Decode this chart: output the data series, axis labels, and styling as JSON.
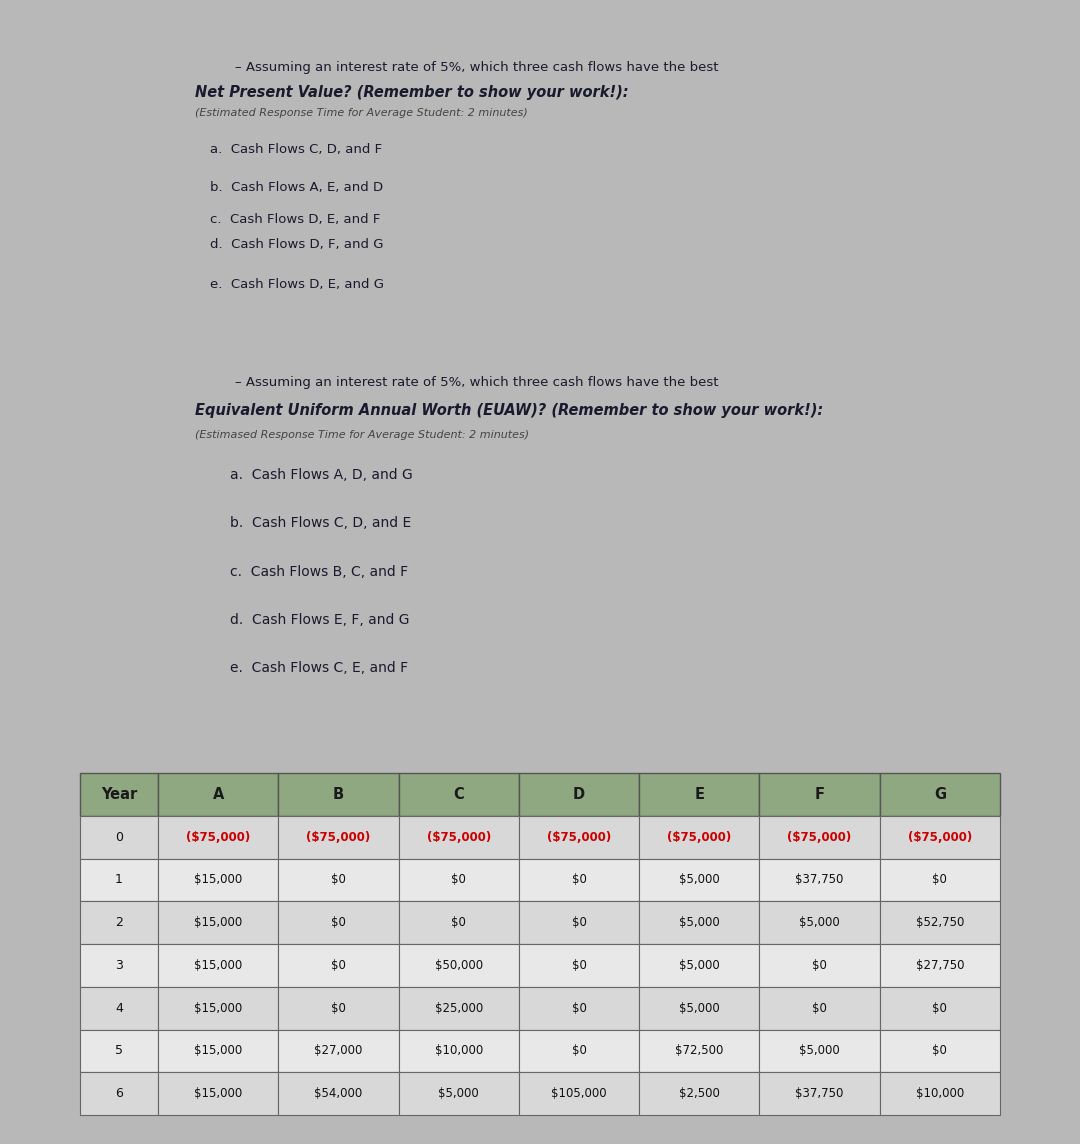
{
  "bg_color": "#b8b8b8",
  "panel_bg": "#cccccc",
  "panel_border": "#888888",
  "header_bg": "#8fa882",
  "row_bg_even": "#d8d8d8",
  "row_bg_odd": "#e8e8e8",
  "neg_color": "#cc0000",
  "pos_color": "#111111",
  "panel1": {
    "title_line1": "– Assuming an interest rate of 5%, which three cash flows have the best",
    "title_line2": "Net Present Value? (Remember to show your work!):",
    "title_line3": "(Estimated Response Time for Average Student: 2 minutes)",
    "options": [
      "a.  Cash Flows C, D, and F",
      "b.  Cash Flows A, E, and D",
      "c.  Cash Flows D, E, and F",
      "d.  Cash Flows D, F, and G",
      "e.  Cash Flows D, E, and G"
    ]
  },
  "panel2": {
    "title_line1": "– Assuming an interest rate of 5%, which three cash flows have the best",
    "title_line2": "Equivalent Uniform Annual Worth (EUAW)? (Remember to show your work!):",
    "title_line3": "(Estimased Response Time for Average Student: 2 minutes)",
    "options": [
      "a.  Cash Flows A, D, and G",
      "b.  Cash Flows C, D, and E",
      "c.  Cash Flows B, C, and F",
      "d.  Cash Flows E, F, and G",
      "e.  Cash Flows C, E, and F"
    ]
  },
  "table": {
    "headers": [
      "Year",
      "A",
      "B",
      "C",
      "D",
      "E",
      "F",
      "G"
    ],
    "rows": [
      [
        "0",
        "($75,000)",
        "($75,000)",
        "($75,000)",
        "($75,000)",
        "($75,000)",
        "($75,000)",
        "($75,000)"
      ],
      [
        "1",
        "$15,000",
        "$0",
        "$0",
        "$0",
        "$5,000",
        "$37,750",
        "$0"
      ],
      [
        "2",
        "$15,000",
        "$0",
        "$0",
        "$0",
        "$5,000",
        "$5,000",
        "$52,750"
      ],
      [
        "3",
        "$15,000",
        "$0",
        "$50,000",
        "$0",
        "$5,000",
        "$0",
        "$27,750"
      ],
      [
        "4",
        "$15,000",
        "$0",
        "$25,000",
        "$0",
        "$5,000",
        "$0",
        "$0"
      ],
      [
        "5",
        "$15,000",
        "$27,000",
        "$10,000",
        "$0",
        "$72,500",
        "$5,000",
        "$0"
      ],
      [
        "6",
        "$15,000",
        "$54,000",
        "$5,000",
        "$105,000",
        "$2,500",
        "$37,750",
        "$10,000"
      ]
    ]
  }
}
